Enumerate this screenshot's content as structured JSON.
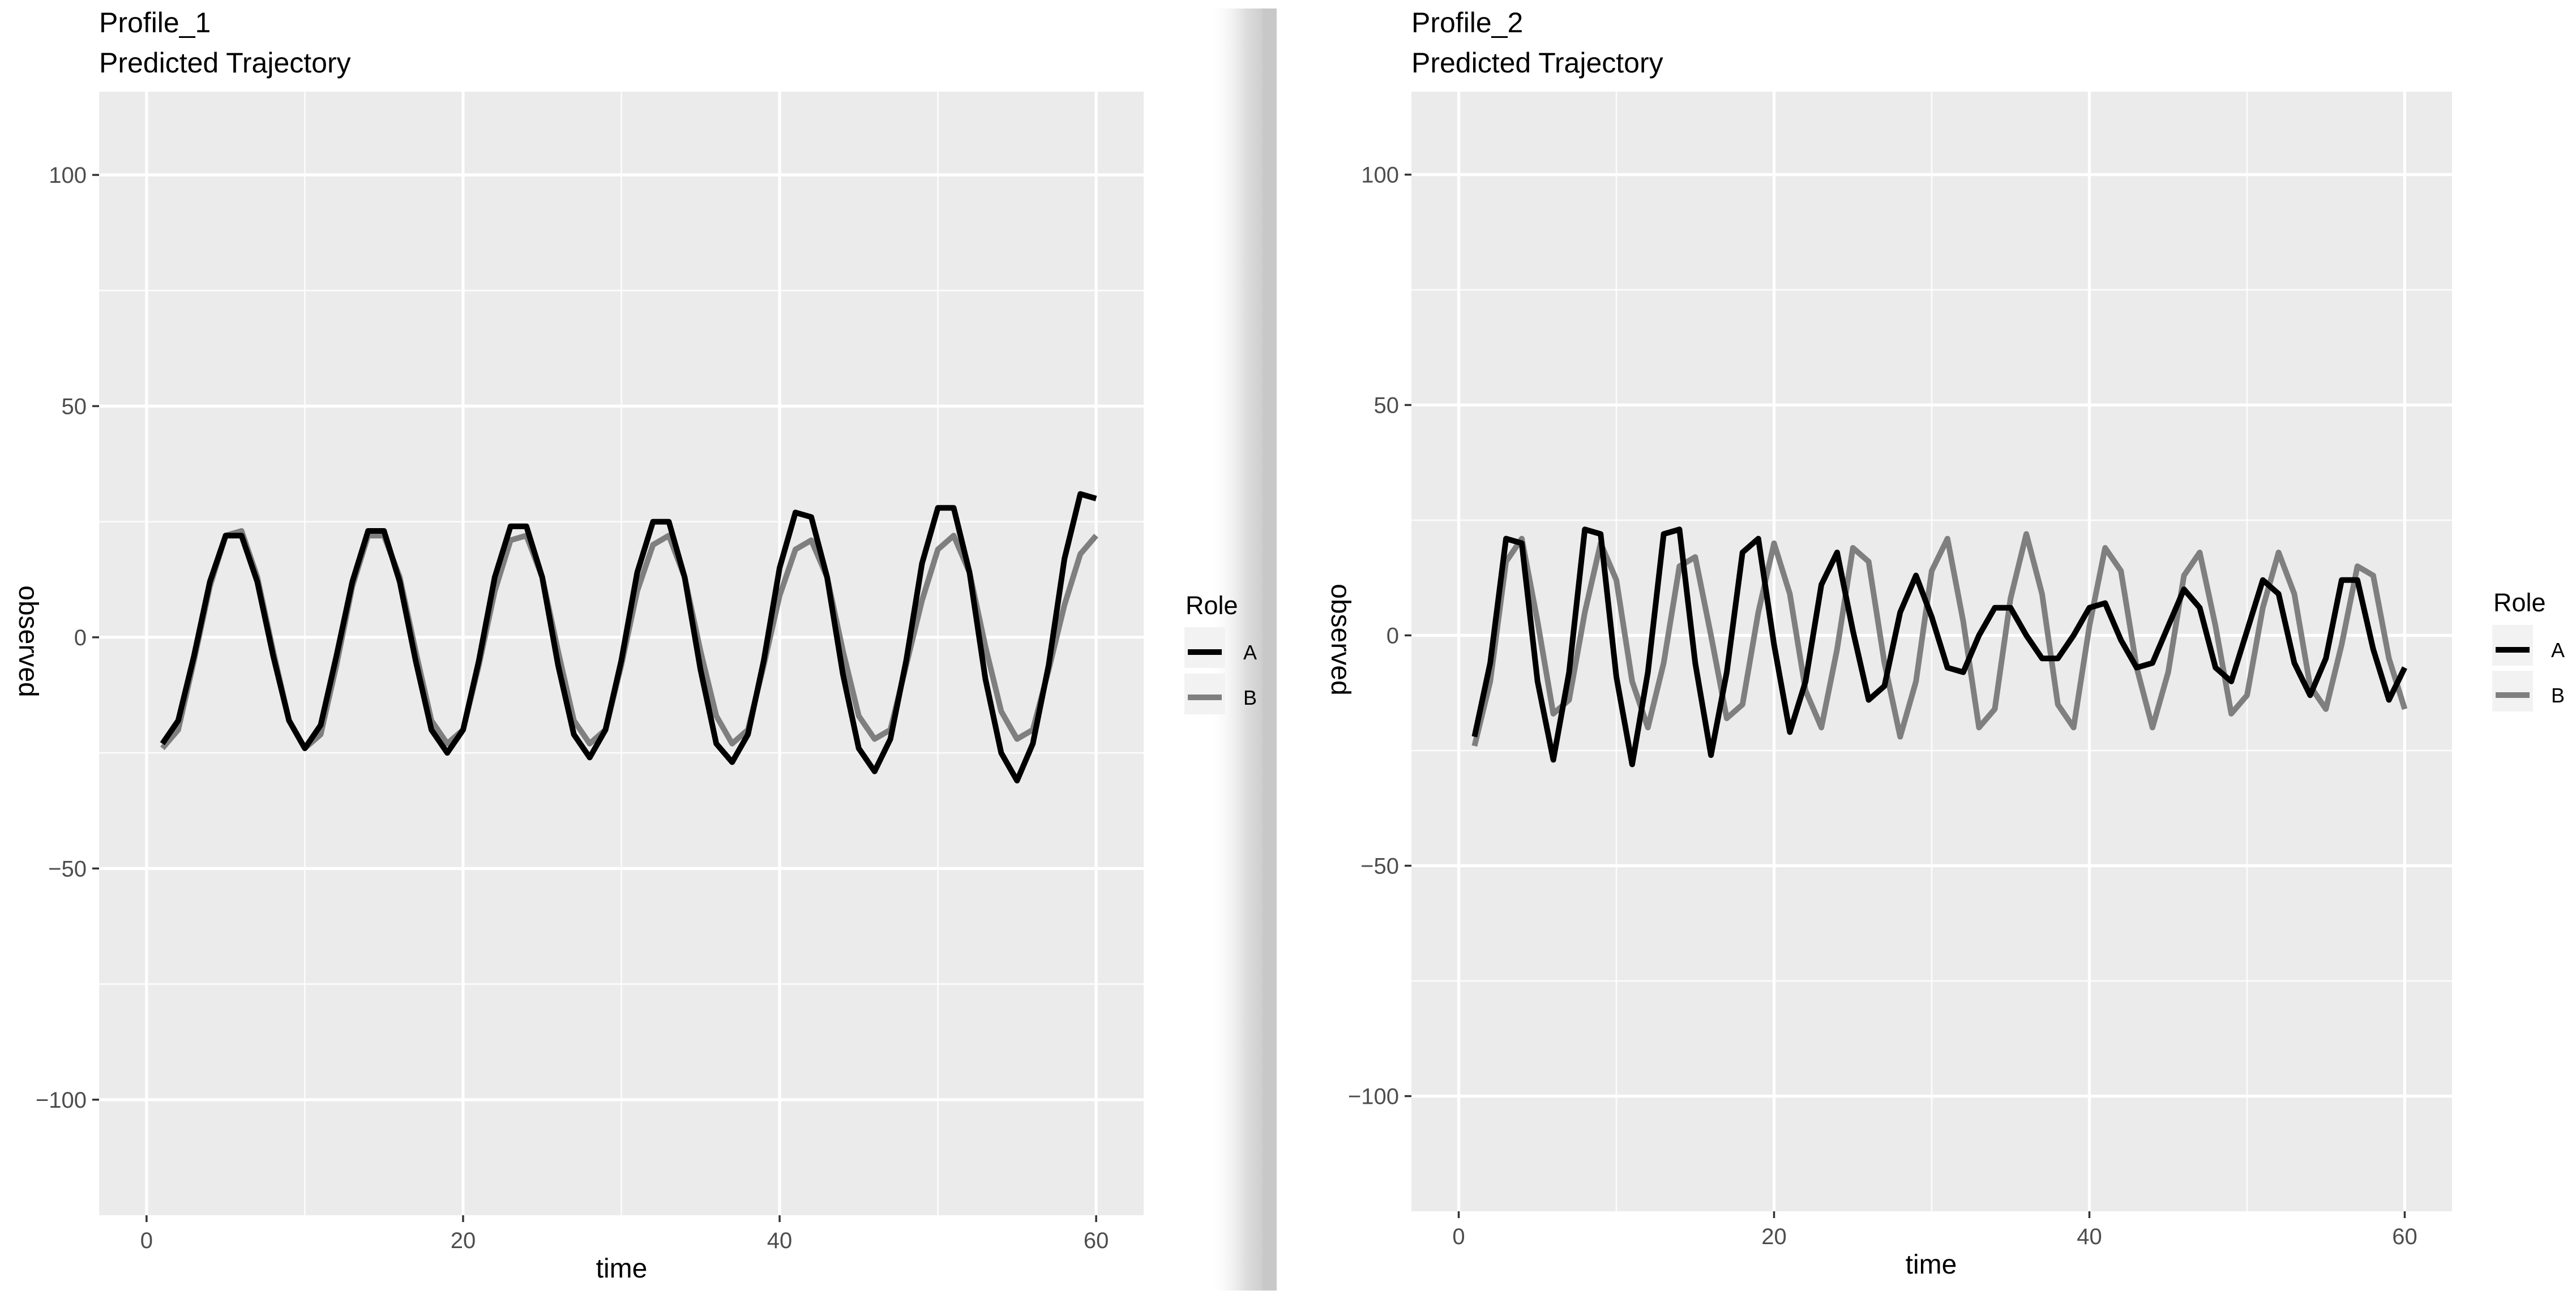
{
  "colors": {
    "panel_background": "#ebebeb",
    "grid": "#ffffff",
    "series_A": "#000000",
    "series_B": "#7f7f7f"
  },
  "chart_data": [
    {
      "type": "line",
      "title": "Profile_1",
      "subtitle": "Predicted Trajectory",
      "xlabel": "time",
      "ylabel": "observed",
      "xlim": [
        -3,
        63
      ],
      "ylim": [
        -125,
        118
      ],
      "xticks": [
        0,
        20,
        40,
        60
      ],
      "yticks": [
        -100,
        -50,
        0,
        50,
        100
      ],
      "xtick_labels": [
        "0",
        "20",
        "40",
        "60"
      ],
      "ytick_labels": [
        "−100",
        "−50",
        "0",
        "50",
        "100"
      ],
      "grid": true,
      "legend": {
        "title": "Role",
        "position": "right",
        "entries": [
          "A",
          "B"
        ]
      },
      "x": [
        1,
        2,
        3,
        4,
        5,
        6,
        7,
        8,
        9,
        10,
        11,
        12,
        13,
        14,
        15,
        16,
        17,
        18,
        19,
        20,
        21,
        22,
        23,
        24,
        25,
        26,
        27,
        28,
        29,
        30,
        31,
        32,
        33,
        34,
        35,
        36,
        37,
        38,
        39,
        40,
        41,
        42,
        43,
        44,
        45,
        46,
        47,
        48,
        49,
        50,
        51,
        52,
        53,
        54,
        55,
        56,
        57,
        58,
        59,
        60
      ],
      "series": [
        {
          "name": "A",
          "values": [
            -23,
            -18,
            -4,
            12,
            22,
            22,
            12,
            -4,
            -18,
            -24,
            -19,
            -4,
            12,
            23,
            23,
            12,
            -5,
            -20,
            -25,
            -20,
            -5,
            13,
            24,
            24,
            13,
            -6,
            -21,
            -26,
            -20,
            -5,
            14,
            25,
            25,
            13,
            -7,
            -23,
            -27,
            -21,
            -5,
            15,
            27,
            26,
            13,
            -8,
            -24,
            -29,
            -22,
            -5,
            16,
            28,
            28,
            14,
            -9,
            -25,
            -31,
            -23,
            -6,
            17,
            31,
            30
          ]
        },
        {
          "name": "B",
          "values": [
            -24,
            -20,
            -5,
            11,
            22,
            23,
            13,
            -3,
            -18,
            -24,
            -21,
            -6,
            11,
            22,
            22,
            13,
            -3,
            -18,
            -23,
            -20,
            -6,
            10,
            21,
            22,
            13,
            -3,
            -18,
            -23,
            -20,
            -6,
            10,
            20,
            22,
            13,
            -3,
            -17,
            -23,
            -20,
            -6,
            9,
            19,
            21,
            13,
            -3,
            -17,
            -22,
            -20,
            -6,
            8,
            19,
            22,
            14,
            -2,
            -16,
            -22,
            -20,
            -7,
            7,
            18,
            22
          ]
        }
      ]
    },
    {
      "type": "line",
      "title": "Profile_2",
      "subtitle": "Predicted Trajectory",
      "xlabel": "time",
      "ylabel": "observed",
      "xlim": [
        -3,
        63
      ],
      "ylim": [
        -125,
        118
      ],
      "xticks": [
        0,
        20,
        40,
        60
      ],
      "yticks": [
        -100,
        -50,
        0,
        50,
        100
      ],
      "xtick_labels": [
        "0",
        "20",
        "40",
        "60"
      ],
      "ytick_labels": [
        "−100",
        "−50",
        "0",
        "50",
        "100"
      ],
      "grid": true,
      "legend": {
        "title": "Role",
        "position": "right",
        "entries": [
          "A",
          "B"
        ]
      },
      "x": [
        1,
        2,
        3,
        4,
        5,
        6,
        7,
        8,
        9,
        10,
        11,
        12,
        13,
        14,
        15,
        16,
        17,
        18,
        19,
        20,
        21,
        22,
        23,
        24,
        25,
        26,
        27,
        28,
        29,
        30,
        31,
        32,
        33,
        34,
        35,
        36,
        37,
        38,
        39,
        40,
        41,
        42,
        43,
        44,
        45,
        46,
        47,
        48,
        49,
        50,
        51,
        52,
        53,
        54,
        55,
        56,
        57,
        58,
        59,
        60
      ],
      "series": [
        {
          "name": "A",
          "values": [
            -22,
            -6,
            21,
            20,
            -10,
            -27,
            -8,
            23,
            22,
            -9,
            -28,
            -8,
            22,
            23,
            -6,
            -26,
            -8,
            18,
            21,
            -2,
            -21,
            -10,
            11,
            18,
            1,
            -14,
            -11,
            5,
            13,
            4,
            -7,
            -8,
            0,
            6,
            6,
            0,
            -5,
            -5,
            0,
            6,
            7,
            -1,
            -7,
            -6,
            2,
            10,
            6,
            -7,
            -10,
            1,
            12,
            9,
            -6,
            -13,
            -5,
            12,
            12,
            -3,
            -14,
            -7
          ]
        },
        {
          "name": "B",
          "values": [
            -24,
            -10,
            16,
            21,
            3,
            -17,
            -14,
            5,
            20,
            12,
            -10,
            -20,
            -6,
            15,
            17,
            0,
            -18,
            -15,
            5,
            20,
            9,
            -12,
            -20,
            -3,
            19,
            16,
            -6,
            -22,
            -10,
            14,
            21,
            3,
            -20,
            -16,
            8,
            22,
            9,
            -15,
            -20,
            2,
            19,
            14,
            -7,
            -20,
            -8,
            13,
            18,
            2,
            -17,
            -13,
            6,
            18,
            9,
            -11,
            -16,
            -2,
            15,
            13,
            -5,
            -16
          ]
        }
      ]
    }
  ]
}
